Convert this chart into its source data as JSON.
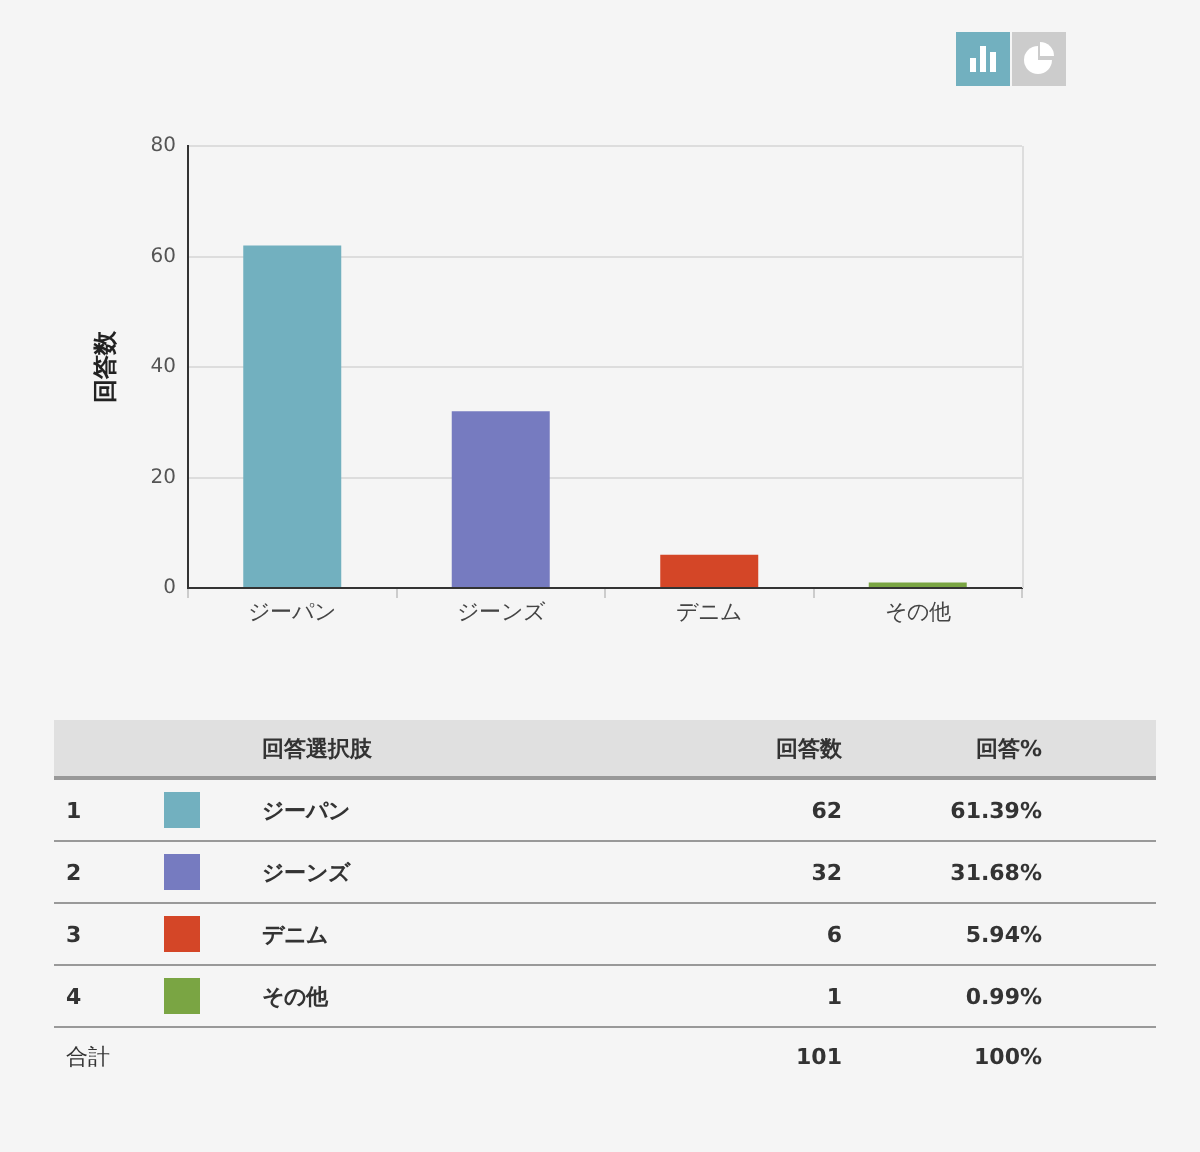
{
  "chart_data": {
    "type": "bar",
    "ylabel": "回答数",
    "categories": [
      "ジーパン",
      "ジーンズ",
      "デニム",
      "その他"
    ],
    "values": [
      62,
      32,
      6,
      1
    ],
    "colors": [
      "#72b0bf",
      "#767bc0",
      "#d44627",
      "#7aa543"
    ],
    "ylim": [
      0,
      80
    ],
    "yticks": [
      0,
      20,
      40,
      60,
      80
    ],
    "grid": "y",
    "annotations": [
      "回答選択肢",
      "回答数",
      "回答%",
      "1",
      "2",
      "3",
      "4",
      "62",
      "32",
      "6",
      "1",
      "61.39%",
      "31.68%",
      "5.94%",
      "0.99%",
      "合計",
      "101",
      "100%"
    ]
  }
}
